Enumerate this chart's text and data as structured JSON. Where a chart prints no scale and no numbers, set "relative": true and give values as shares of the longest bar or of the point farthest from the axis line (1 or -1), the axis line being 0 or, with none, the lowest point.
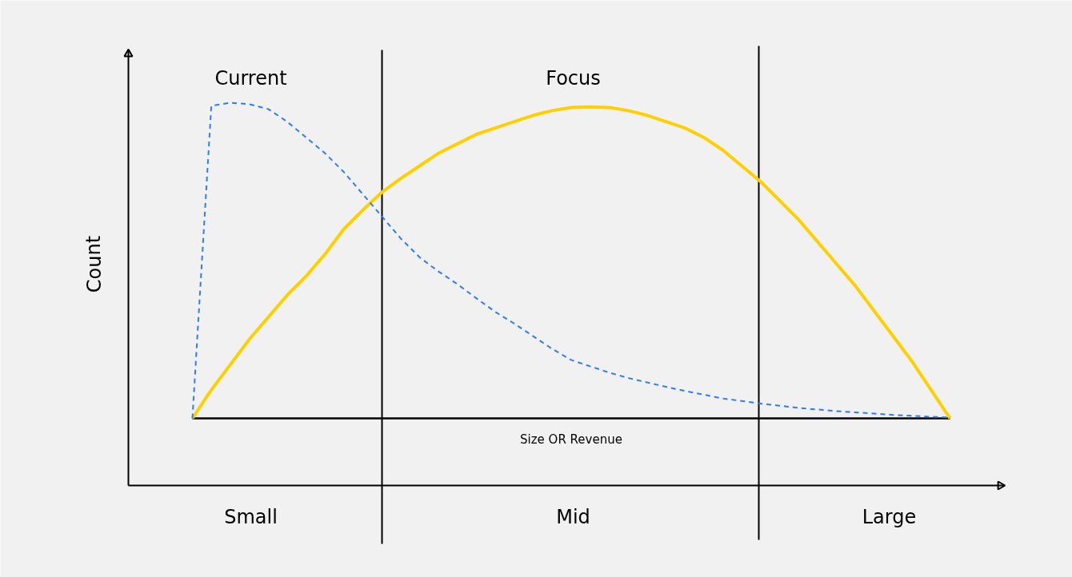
{
  "chart_data": {
    "type": "line",
    "relative": true,
    "xlabel": "Size OR Revenue",
    "ylabel": "Count",
    "tick_labels": false,
    "categories": [
      null,
      null,
      null,
      null,
      null,
      null,
      null,
      null,
      null,
      null,
      null,
      null,
      null,
      null,
      null,
      null,
      null,
      null,
      null,
      null,
      null,
      null,
      null,
      null,
      null,
      null,
      null,
      null,
      null,
      null,
      null,
      null,
      null,
      null,
      null,
      null,
      null,
      null,
      null,
      null,
      null
    ],
    "series": [
      {
        "color": "#ffd000",
        "line_style": "solid",
        "values": [
          0,
          0.09,
          0.17,
          0.25,
          0.32,
          0.39,
          0.45,
          0.52,
          0.6,
          0.66,
          0.716,
          0.76,
          0.8,
          0.84,
          0.87,
          0.9,
          0.92,
          0.94,
          0.96,
          0.975,
          0.985,
          0.987,
          0.985,
          0.975,
          0.96,
          0.94,
          0.92,
          0.89,
          0.85,
          0.8,
          0.75,
          0.69,
          0.63,
          0.56,
          0.49,
          0.42,
          0.34,
          0.26,
          0.18,
          0.09,
          0
        ]
      },
      {
        "color": "#2f7bf5",
        "line_style": "dashed",
        "values": [
          0,
          0.99,
          1,
          0.995,
          0.98,
          0.94,
          0.89,
          0.84,
          0.78,
          0.71,
          0.64,
          0.57,
          0.51,
          0.465,
          0.425,
          0.38,
          0.337,
          0.3,
          0.26,
          0.22,
          0.185,
          0.165,
          0.145,
          0.128,
          0.114,
          0.1,
          0.087,
          0.075,
          0.063,
          0.055,
          0.047,
          0.04,
          0.033,
          0.028,
          0.023,
          0.019,
          0.015,
          0.011,
          0.008,
          0.005,
          0.003
        ]
      }
    ],
    "annotations": [
      "Current",
      "Focus",
      "Small",
      "Mid",
      "Large"
    ]
  }
}
